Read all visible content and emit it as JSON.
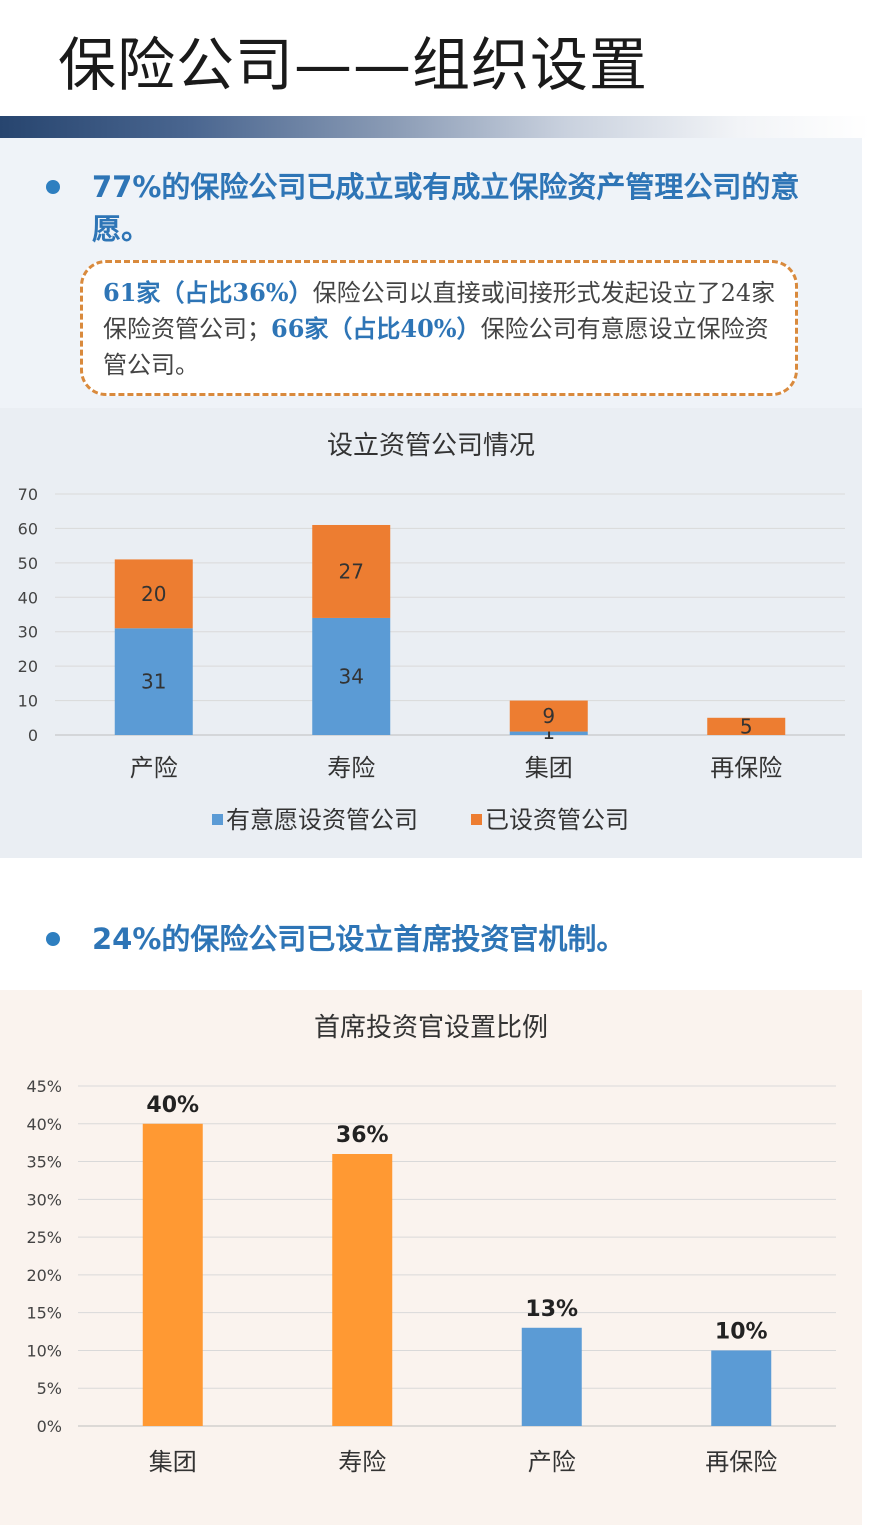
{
  "page": {
    "title": "保险公司——组织设置"
  },
  "section1": {
    "bullet": "77%的保险公司已成立或有成立保险资产管理公司的意愿。",
    "note": {
      "part1": "61家（占比36%）",
      "part2": "保险公司以直接或间接形式发起设立了24家保险资管公司；",
      "part3": "66家（占比40%）",
      "part4": "保险公司有意愿设立保险资管公司。"
    }
  },
  "section2": {
    "bullet": "24%的保险公司已设立首席投资官机制。"
  },
  "colors": {
    "blue": "#5b9bd5",
    "orange": "#ed7d31",
    "light_orange": "#ff9933",
    "bullet_text": "#2e75b6"
  },
  "chart_data": [
    {
      "type": "bar",
      "stacked": true,
      "title": "设立资管公司情况",
      "categories": [
        "产险",
        "寿险",
        "集团",
        "再保险"
      ],
      "series": [
        {
          "name": "有意愿设资管公司",
          "values": [
            31,
            34,
            1,
            0
          ],
          "labels": [
            "31",
            "34",
            "1",
            ""
          ],
          "color": "#5b9bd5"
        },
        {
          "name": "已设资管公司",
          "values": [
            20,
            27,
            9,
            5
          ],
          "labels": [
            "20",
            "27",
            "9",
            "5"
          ],
          "color": "#ed7d31"
        }
      ],
      "ylim": [
        0,
        70
      ],
      "yticks": [
        "0",
        "10",
        "20",
        "30",
        "40",
        "50",
        "60",
        "70"
      ],
      "legend": "bottom",
      "grid": true
    },
    {
      "type": "bar",
      "title": "首席投资官设置比例",
      "categories": [
        "集团",
        "寿险",
        "产险",
        "再保险"
      ],
      "values": [
        40,
        36,
        13,
        10
      ],
      "labels": [
        "40%",
        "36%",
        "13%",
        "10%"
      ],
      "colors": [
        "#ff9933",
        "#ff9933",
        "#5b9bd5",
        "#5b9bd5"
      ],
      "ylim": [
        0,
        45
      ],
      "yticks": [
        "0%",
        "5%",
        "10%",
        "15%",
        "20%",
        "25%",
        "30%",
        "35%",
        "40%",
        "45%"
      ],
      "grid": true
    }
  ]
}
